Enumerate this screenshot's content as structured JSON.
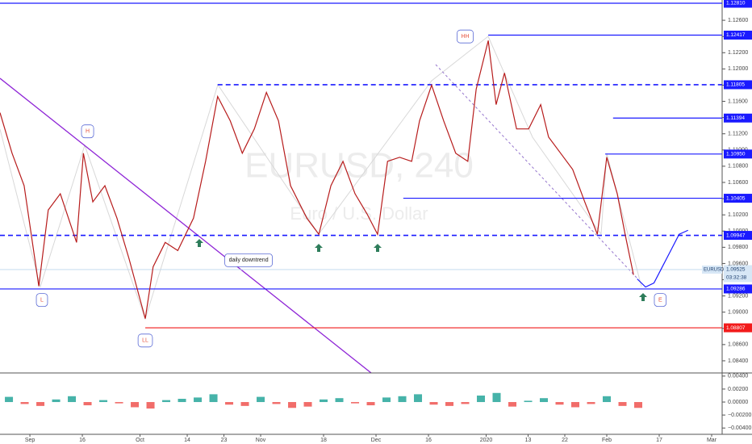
{
  "chart_data": [
    {
      "type": "line",
      "title": "EURUSD, 240",
      "subtitle": "Euro / U.S. Dollar",
      "xlim": [
        -5.7,
        132
      ],
      "xticks": [
        {
          "value": 0,
          "label": "Sep"
        },
        {
          "value": 10,
          "label": "16"
        },
        {
          "value": 21,
          "label": "Oct"
        },
        {
          "value": 30,
          "label": "14"
        },
        {
          "value": 37,
          "label": "23"
        },
        {
          "value": 44,
          "label": "Nov"
        },
        {
          "value": 56,
          "label": "18"
        },
        {
          "value": 66,
          "label": "Dec"
        },
        {
          "value": 76,
          "label": "16"
        },
        {
          "value": 87,
          "label": "2020"
        },
        {
          "value": 95,
          "label": "13"
        },
        {
          "value": 102,
          "label": "22"
        },
        {
          "value": 110,
          "label": "Feb"
        },
        {
          "value": 120,
          "label": "17"
        },
        {
          "value": 130,
          "label": "Mar"
        }
      ],
      "ylim": [
        1.0825,
        1.1285
      ],
      "yticks": [
        {
          "value": 1.126,
          "label": "1.12600"
        },
        {
          "value": 1.124,
          "label": "1.12400"
        },
        {
          "value": 1.122,
          "label": "1.12200"
        },
        {
          "value": 1.12,
          "label": "1.12000"
        },
        {
          "value": 1.118,
          "label": "1.11800"
        },
        {
          "value": 1.116,
          "label": "1.11600"
        },
        {
          "value": 1.114,
          "label": "1.11400"
        },
        {
          "value": 1.112,
          "label": "1.11200"
        },
        {
          "value": 1.11,
          "label": "1.11000"
        },
        {
          "value": 1.108,
          "label": "1.10800"
        },
        {
          "value": 1.106,
          "label": "1.10600"
        },
        {
          "value": 1.104,
          "label": "1.10400"
        },
        {
          "value": 1.102,
          "label": "1.10200"
        },
        {
          "value": 1.1,
          "label": "1.10000"
        },
        {
          "value": 1.098,
          "label": "1.09800"
        },
        {
          "value": 1.096,
          "label": "1.09600"
        },
        {
          "value": 1.094,
          "label": "1.09400"
        },
        {
          "value": 1.092,
          "label": "1.09200"
        },
        {
          "value": 1.09,
          "label": "1.09000"
        },
        {
          "value": 1.088,
          "label": "1.08800"
        },
        {
          "value": 1.086,
          "label": "1.08600"
        },
        {
          "value": 1.084,
          "label": "1.08400"
        }
      ],
      "series": [
        {
          "color": "#b71c1c",
          "x": [
            -5.7,
            -3.4,
            -1.1,
            1.7,
            3.5,
            5.8,
            8.9,
            10.2,
            12,
            14.3,
            16.6,
            18.9,
            22,
            23.5,
            25.8,
            28.2,
            31.2,
            33.5,
            35.8,
            38.2,
            40.5,
            42.8,
            45.1,
            47.4,
            49.7,
            52.8,
            55.1,
            57.4,
            59.7,
            62,
            64.3,
            66.3,
            68.2,
            70.5,
            72.8,
            74.3,
            76.6,
            78.9,
            81.2,
            83.5,
            85.1,
            87.4,
            88.9,
            90.5,
            92.8,
            95.1,
            97.4,
            98.9,
            101.2,
            103.5,
            105.8,
            108.2,
            110,
            112,
            113.5,
            115.1
          ],
          "values": [
            1.1146,
            1.1096,
            1.1056,
            1.0932,
            1.1026,
            1.1046,
            1.0986,
            1.1096,
            1.1036,
            1.1056,
            1.1016,
            1.0966,
            1.0892,
            1.0956,
            1.0986,
            1.0976,
            1.1016,
            1.1086,
            1.1166,
            1.1136,
            1.1096,
            1.1126,
            1.1171,
            1.1136,
            1.1056,
            1.1016,
            1.0996,
            1.1056,
            1.1086,
            1.1046,
            1.1021,
            1.0996,
            1.1086,
            1.1091,
            1.1086,
            1.1136,
            1.118,
            1.1136,
            1.1096,
            1.1086,
            1.1175,
            1.1235,
            1.1156,
            1.1195,
            1.1126,
            1.1126,
            1.1156,
            1.1116,
            1.1096,
            1.1076,
            1.1036,
            1.0996,
            1.1091,
            1.1046,
            1.0996,
            1.0946
          ]
        },
        {
          "color": "#1a1aff",
          "x": [
            115.8,
            117.4,
            119,
            120.6,
            122.2,
            123.8,
            125.5
          ],
          "values": [
            1.0941,
            1.0931,
            1.0936,
            1.0956,
            1.0976,
            1.0996,
            1.1001
          ]
        }
      ],
      "levels": [
        {
          "value": 1.1281,
          "label": "1.12810",
          "from": -5.7,
          "color": "#1a1aff",
          "dashed": false
        },
        {
          "value": 1.12417,
          "label": "1.12417",
          "from": 87.4,
          "color": "#1a1aff",
          "dashed": false
        },
        {
          "value": 1.11805,
          "label": "1.11805",
          "from": 35.8,
          "color": "#1a1aff",
          "dashed": true
        },
        {
          "value": 1.11394,
          "label": "1.11394",
          "from": 111.2,
          "color": "#1a1aff",
          "dashed": false
        },
        {
          "value": 1.1095,
          "label": "1.10950",
          "from": 109.7,
          "color": "#1a1aff",
          "dashed": false
        },
        {
          "value": 1.10405,
          "label": "1.10405",
          "from": 71.2,
          "color": "#1a1aff",
          "dashed": false
        },
        {
          "value": 1.09947,
          "label": "1.09947",
          "from": -5.7,
          "color": "#1a1aff",
          "dashed": true
        },
        {
          "value": 1.09286,
          "label": "1.09286",
          "from": -5.7,
          "color": "#1a1aff",
          "dashed": false
        },
        {
          "value": 1.08807,
          "label": "1.08807",
          "from": 22,
          "color": "#f21b1b",
          "dashed": false
        }
      ],
      "last_price": {
        "value": 1.09525,
        "label": "1.09525",
        "symbol": "EURUSD",
        "countdown": "03:32:38"
      },
      "annotations": [
        {
          "text": "H",
          "x": 11,
          "y": 1.1123
        },
        {
          "text": "L",
          "x": 2.3,
          "y": 1.0915
        },
        {
          "text": "LL",
          "x": 22,
          "y": 1.0865
        },
        {
          "text": "HH",
          "x": 83,
          "y": 1.124
        },
        {
          "text": "E",
          "x": 120.2,
          "y": 1.0915
        },
        {
          "text": "daily downtrend",
          "x": 41.7,
          "y": 1.0964
        }
      ]
    },
    {
      "type": "bar",
      "ylim": [
        -0.00497,
        0.00448
      ],
      "yticks": [
        {
          "value": 0.004,
          "label": "0.00400"
        },
        {
          "value": 0.002,
          "label": "0.00200"
        },
        {
          "value": 0,
          "label": "0.00000"
        },
        {
          "value": -0.002,
          "label": "−0.00200"
        },
        {
          "value": -0.004,
          "label": "−0.00400"
        }
      ],
      "up_color": "#26a69a",
      "down_color": "#ef5350",
      "x": [
        -4,
        -1,
        2,
        5,
        8,
        11,
        14,
        17,
        20,
        23,
        26,
        29,
        32,
        35,
        38,
        41,
        44,
        47,
        50,
        53,
        56,
        59,
        62,
        65,
        68,
        71,
        74,
        77,
        80,
        83,
        86,
        89,
        92,
        95,
        98,
        101,
        104,
        107,
        110,
        113,
        116
      ],
      "values": [
        0.0008,
        -0.0003,
        -0.0006,
        0.0004,
        0.0009,
        -0.0005,
        0.0003,
        -0.0002,
        -0.0008,
        -0.001,
        0.0003,
        0.0005,
        0.0007,
        0.0012,
        -0.0004,
        -0.0006,
        0.0008,
        -0.0003,
        -0.0009,
        -0.0007,
        0.0004,
        0.0006,
        -0.0002,
        -0.0005,
        0.0007,
        0.0009,
        0.0012,
        -0.0004,
        -0.0006,
        -0.0003,
        0.001,
        0.0014,
        -0.0007,
        0.0002,
        0.0006,
        -0.0004,
        -0.0008,
        -0.0003,
        0.0009,
        -0.0006,
        -0.0009
      ]
    }
  ]
}
